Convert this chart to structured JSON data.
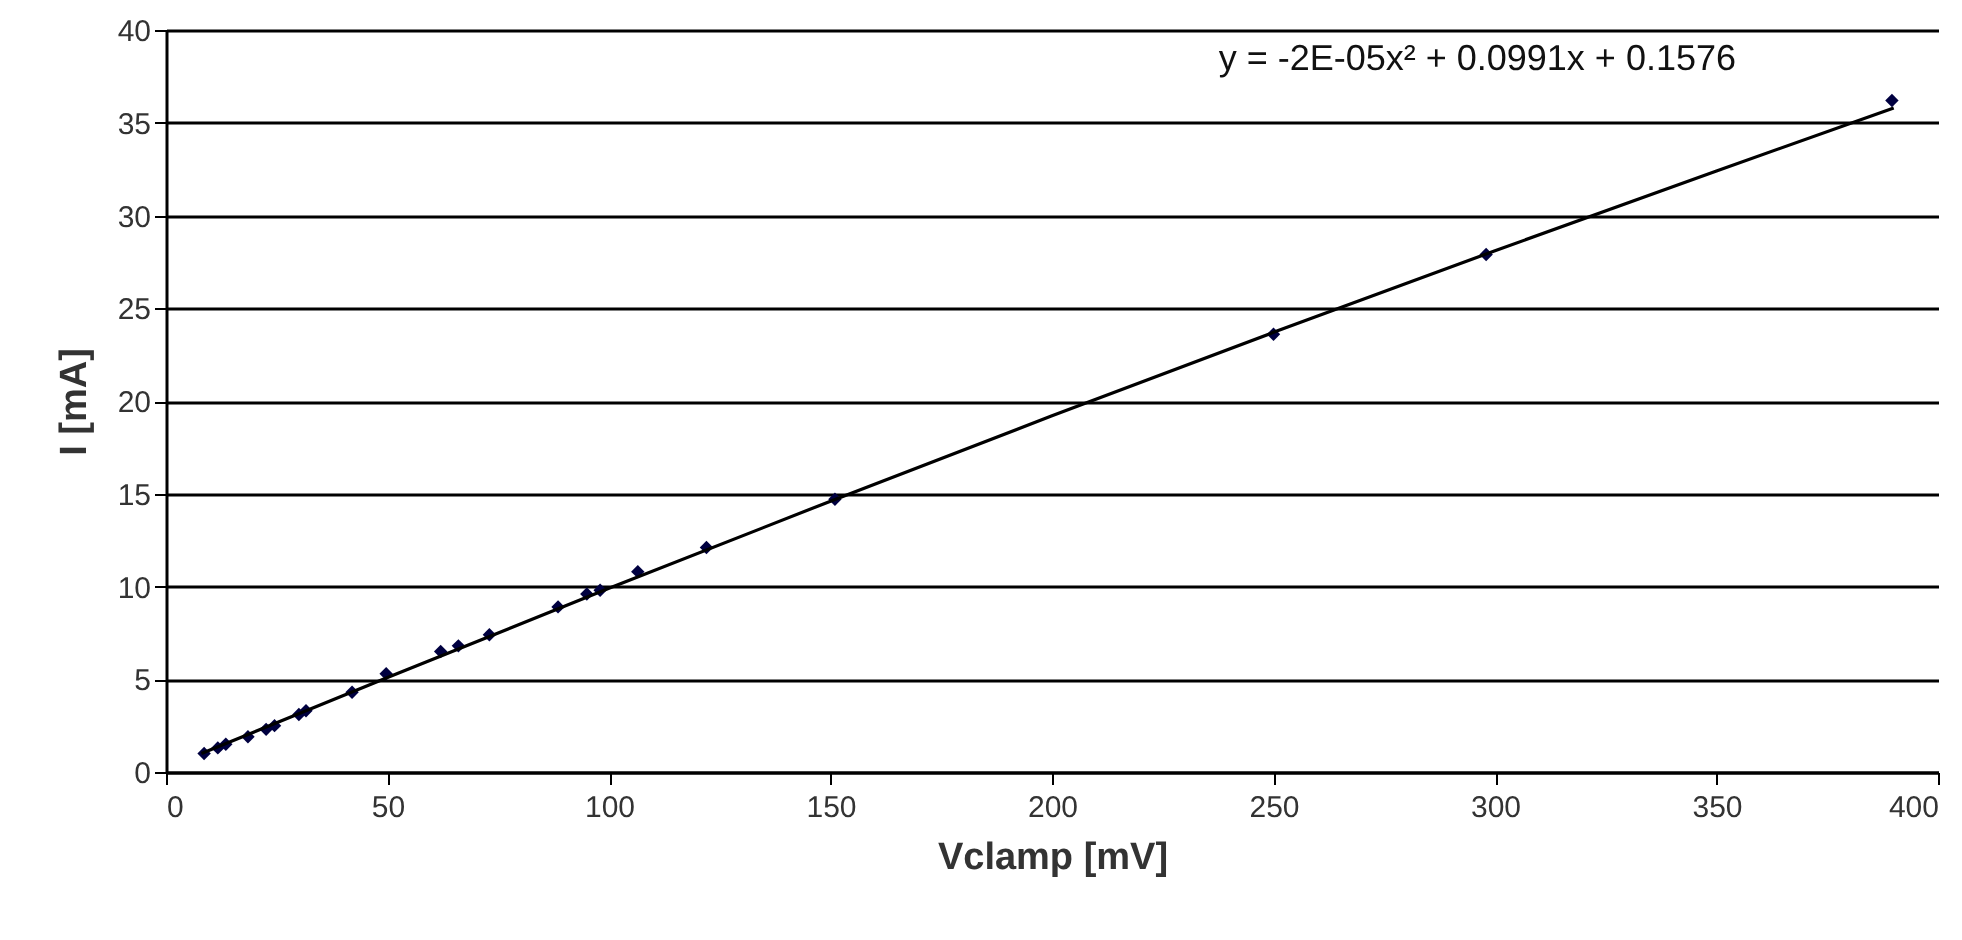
{
  "chart_data": {
    "type": "scatter",
    "xlabel": "Vclamp [mV]",
    "ylabel": "I [mA]",
    "annotations": [
      "y = -2E-05x² + 0.0991x + 0.1576"
    ],
    "xlim": [
      0,
      400
    ],
    "xticks": [
      0,
      50,
      100,
      150,
      200,
      250,
      300,
      350,
      400
    ],
    "ylim": [
      0,
      40
    ],
    "yticks": [
      0,
      5,
      10,
      15,
      20,
      25,
      30,
      35,
      40
    ],
    "grid": "y",
    "series": [
      {
        "marker": "diamond",
        "color": "#000040",
        "x": [
          8.6,
          11.7,
          13.5,
          18.5,
          22.6,
          24.5,
          30,
          31.6,
          42,
          49.7,
          62,
          66,
          73,
          88.5,
          95,
          98,
          106.5,
          122,
          151,
          250,
          298,
          389.6
        ],
        "values": [
          1.0,
          1.3,
          1.5,
          1.9,
          2.3,
          2.5,
          3.1,
          3.3,
          4.3,
          5.3,
          6.5,
          6.8,
          7.4,
          8.9,
          9.6,
          9.8,
          10.8,
          12.1,
          14.7,
          23.6,
          27.9,
          36.2
        ]
      },
      {
        "type": "line",
        "marker": "none",
        "color": "#000000",
        "line_style": "solid",
        "x": [
          8,
          50,
          100,
          150,
          200,
          250,
          300,
          350,
          390
        ],
        "values": [
          1.0,
          5.1,
          9.9,
          14.6,
          19.2,
          23.7,
          28.1,
          32.4,
          35.8
        ]
      }
    ]
  }
}
